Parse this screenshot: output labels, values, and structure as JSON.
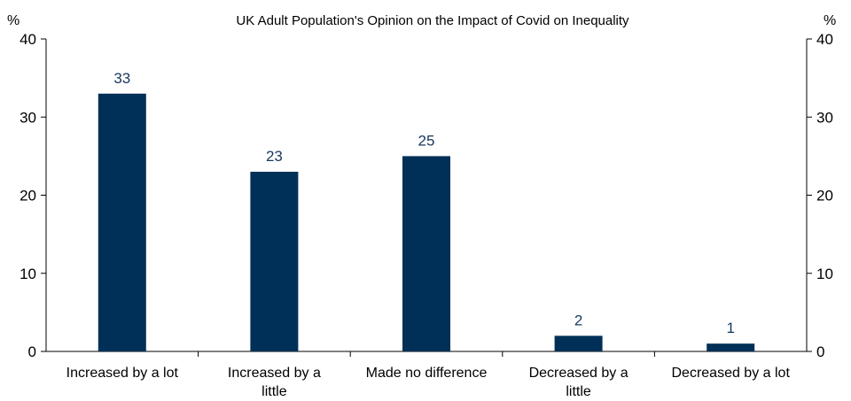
{
  "chart_data": {
    "type": "bar",
    "title": "UK Adult Population's Opinion on the Impact of Covid on Inequality",
    "left_unit": "%",
    "right_unit": "%",
    "categories": [
      [
        "Increased by a lot"
      ],
      [
        "Increased by a",
        "little"
      ],
      [
        "Made no difference"
      ],
      [
        "Decreased by a",
        "little"
      ],
      [
        "Decreased by a lot"
      ]
    ],
    "values": [
      33,
      23,
      25,
      2,
      1
    ],
    "data_labels": [
      "33",
      "23",
      "25",
      "2",
      "1"
    ],
    "ylim": [
      0,
      40
    ],
    "yticks": [
      0,
      10,
      20,
      30,
      40
    ],
    "bar_color": "#003057",
    "label_color": "#17375e",
    "grid": false,
    "legend": "none"
  }
}
